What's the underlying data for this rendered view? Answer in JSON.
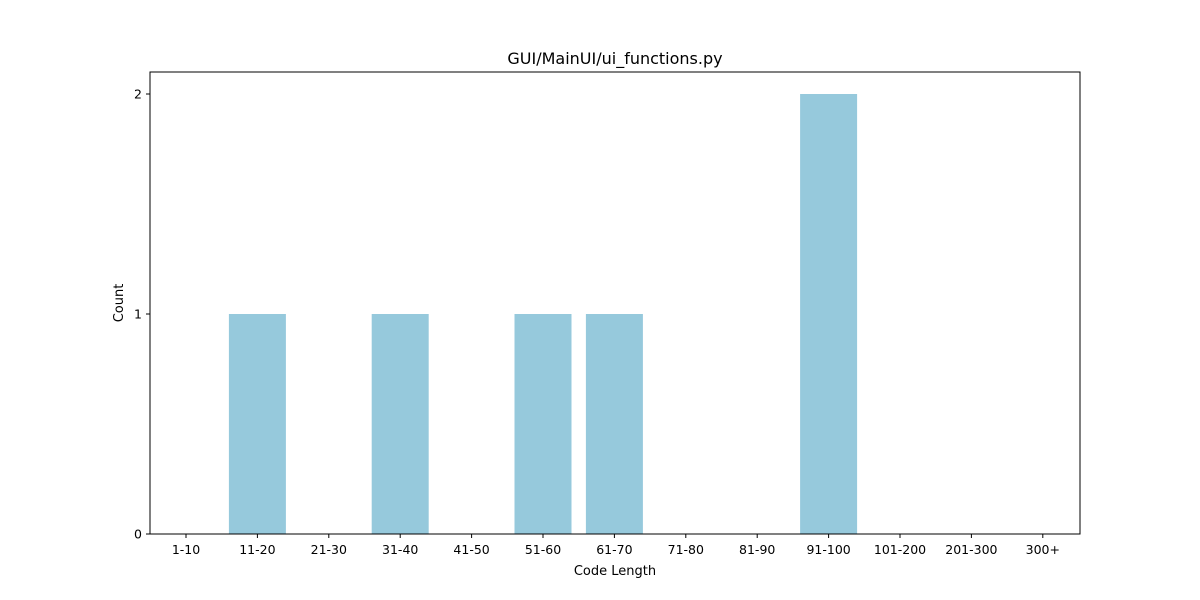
{
  "chart_data": {
    "type": "bar",
    "title": "GUI/MainUI/ui_functions.py",
    "xlabel": "Code Length",
    "ylabel": "Count",
    "categories": [
      "1-10",
      "11-20",
      "21-30",
      "31-40",
      "41-50",
      "51-60",
      "61-70",
      "71-80",
      "81-90",
      "91-100",
      "101-200",
      "201-300",
      "300+"
    ],
    "values": [
      0,
      1,
      0,
      1,
      0,
      1,
      1,
      0,
      0,
      2,
      0,
      0,
      0
    ],
    "yticks": [
      0,
      1,
      2
    ],
    "ylim": [
      0,
      2.1
    ],
    "grid": false,
    "bar_color": "#96c9dc"
  }
}
